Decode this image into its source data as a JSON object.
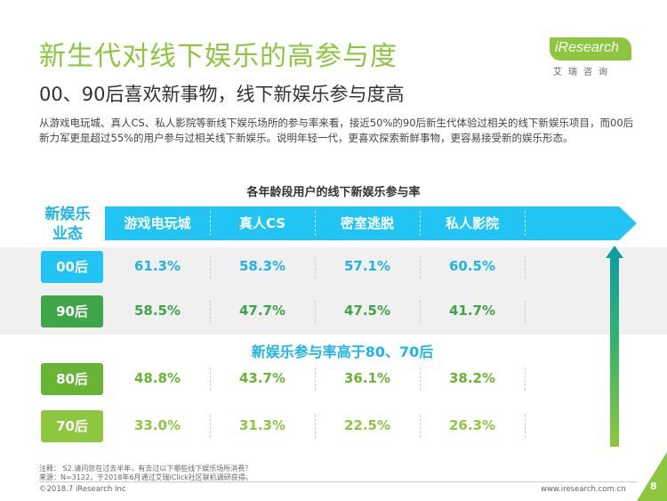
{
  "title": "新生代对线下娱乐的高参与度",
  "subtitle": "00、90后喜欢新事物，线下新娱乐参与度高",
  "intro": "从游戏电玩城、真人CS、私人影院等新线下娱乐场所的参与率来看，接近50%的90后新生代体验过相关的线下新娱乐项目，而00后新力军更是超过55%的用户参与过相关线下新娱乐。说明年轻一代，更喜欢探索新鲜事物，更容易接受新的娱乐形态。",
  "logo": {
    "main": "iResearch",
    "sub": "艾瑞咨询",
    "color": "#8dc63f"
  },
  "chart_data": {
    "type": "table",
    "title": "各年龄段用户的线下新娱乐参与率",
    "row_header": "新娱乐\n业态",
    "columns": [
      "游戏电玩城",
      "真人CS",
      "密室逃脱",
      "私人影院"
    ],
    "rows": [
      {
        "label": "00后",
        "values": [
          "61.3%",
          "58.3%",
          "57.1%",
          "60.5%"
        ],
        "color": "#21c4f2",
        "value_color": "#1fb4e6"
      },
      {
        "label": "90后",
        "values": [
          "58.5%",
          "47.7%",
          "47.5%",
          "41.7%"
        ],
        "color": "#3ea548",
        "value_color": "#3ea548"
      },
      {
        "label": "80后",
        "values": [
          "48.8%",
          "43.7%",
          "36.1%",
          "38.2%"
        ],
        "color": "#69b434",
        "value_color": "#69b434"
      },
      {
        "label": "70后",
        "values": [
          "33.0%",
          "31.3%",
          "22.5%",
          "26.3%"
        ],
        "color": "#8dc63f",
        "value_color": "#8dc63f"
      }
    ],
    "annotation": "新娱乐参与率高于80、70后",
    "header_color": "#21c4f2"
  },
  "notes": {
    "line1": "注释：  S2.请问您在过去半年，有去过以下哪些线下娱乐场所消费？",
    "line2": "来源：N=3122，于2018年6月通过艾瑞iClick社区联机调研获得。"
  },
  "footer": {
    "copyright": "©2018.7 iResearch Inc",
    "website": "www.iresearch.com.cn",
    "page": "8"
  }
}
